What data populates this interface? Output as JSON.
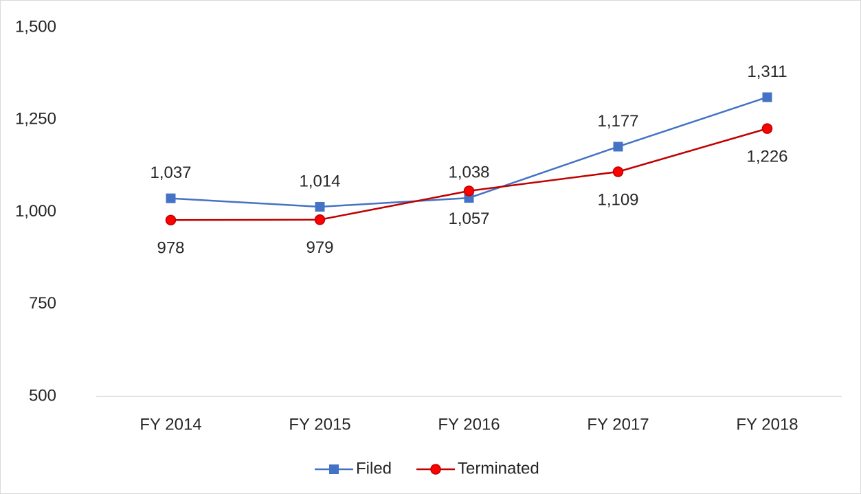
{
  "chart_data": {
    "type": "line",
    "categories": [
      "FY 2014",
      "FY 2015",
      "FY 2016",
      "FY 2017",
      "FY 2018"
    ],
    "series": [
      {
        "name": "Filed",
        "color": "#4472c4",
        "marker": "square",
        "values": [
          1037,
          1014,
          1038,
          1177,
          1311
        ],
        "value_labels": [
          "1,037",
          "1,014",
          "1,038",
          "1,177",
          "1,311"
        ]
      },
      {
        "name": "Terminated",
        "color": "#c00000",
        "marker": "circle",
        "values": [
          978,
          979,
          1057,
          1109,
          1226
        ],
        "value_labels": [
          "978",
          "979",
          "1,057",
          "1,109",
          "1,226"
        ]
      }
    ],
    "ylim": [
      500,
      1500
    ],
    "yticks": [
      500,
      750,
      {
        "value": 1000,
        "label": "1,000"
      },
      {
        "value": 1250,
        "label": "1,250"
      },
      {
        "value": 1500,
        "label": "1,500"
      }
    ],
    "grid": false,
    "legend": "bottom"
  }
}
